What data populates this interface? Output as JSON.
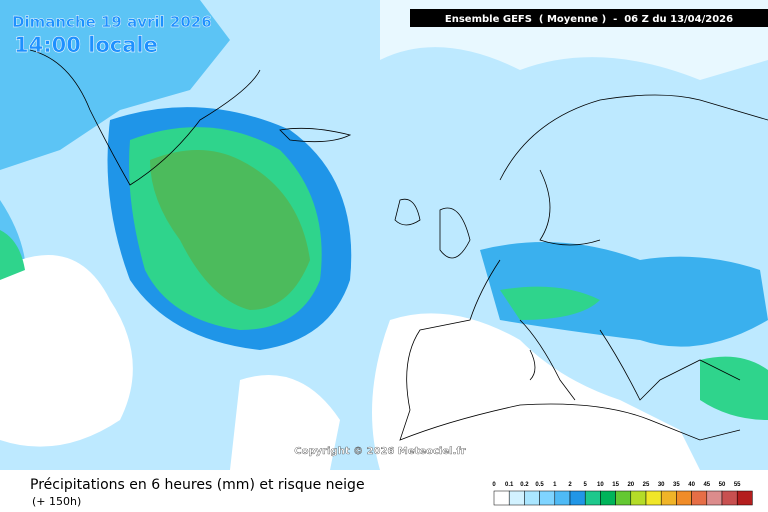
{
  "header": {
    "date": "Dimanche 19 avril 2026",
    "time": "14:00 locale",
    "run": "Ensemble GEFS  ( Moyenne )  -  06 Z du 13/04/2026"
  },
  "copyright": "Copyright © 2026 Meteociel.fr",
  "footer": {
    "title": "Précipitations en 6 heures (mm) et risque neige",
    "lead": "(+ 150h)"
  },
  "legend": {
    "labels": [
      0,
      0.1,
      0.2,
      0.5,
      1,
      2,
      5,
      10,
      15,
      20,
      25,
      30,
      35,
      40,
      45,
      50,
      55
    ],
    "colors": [
      "#ffffff",
      "#d2f2ff",
      "#aae6ff",
      "#7fd4ff",
      "#4fbaf5",
      "#2196e6",
      "#1ec88c",
      "#00b45a",
      "#64c832",
      "#b4dc28",
      "#f0e628",
      "#f0b428",
      "#f08c28",
      "#e66e46",
      "#dc8c8c",
      "#c85050",
      "#b41e1e"
    ]
  }
}
